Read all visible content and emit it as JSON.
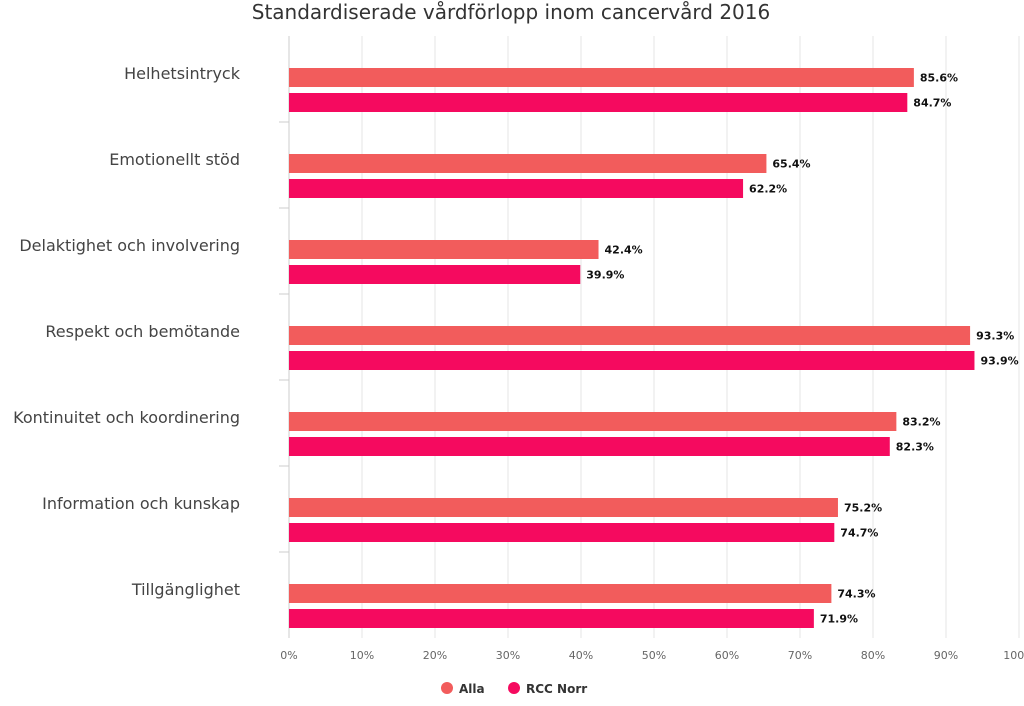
{
  "chart_data": {
    "type": "bar",
    "orientation": "horizontal",
    "title": "Standardiserade vårdförlopp inom cancervård 2016",
    "categories": [
      "Helhetsintryck",
      "Emotionellt stöd",
      "Delaktighet och involvering",
      "Respekt och bemötande",
      "Kontinuitet och koordinering",
      "Information och kunskap",
      "Tillgänglighet"
    ],
    "series": [
      {
        "name": "Alla",
        "color": "#f25c5c",
        "values": [
          85.6,
          65.4,
          42.4,
          93.3,
          83.2,
          75.2,
          74.3
        ],
        "labels": [
          "85.6%",
          "65.4%",
          "42.4%",
          "93.3%",
          "83.2%",
          "75.2%",
          "74.3%"
        ]
      },
      {
        "name": "RCC Norr",
        "color": "#f50a5f",
        "values": [
          84.7,
          62.2,
          39.9,
          93.9,
          82.3,
          74.7,
          71.9
        ],
        "labels": [
          "84.7%",
          "62.2%",
          "39.9%",
          "93.9%",
          "82.3%",
          "74.7%",
          "71.9%"
        ]
      }
    ],
    "xlim": [
      0,
      100
    ],
    "x_ticks": [
      "0%",
      "10%",
      "20%",
      "30%",
      "40%",
      "50%",
      "60%",
      "70%",
      "80%",
      "90%",
      "100%"
    ],
    "grid": true,
    "legend_position": "bottom-center"
  }
}
